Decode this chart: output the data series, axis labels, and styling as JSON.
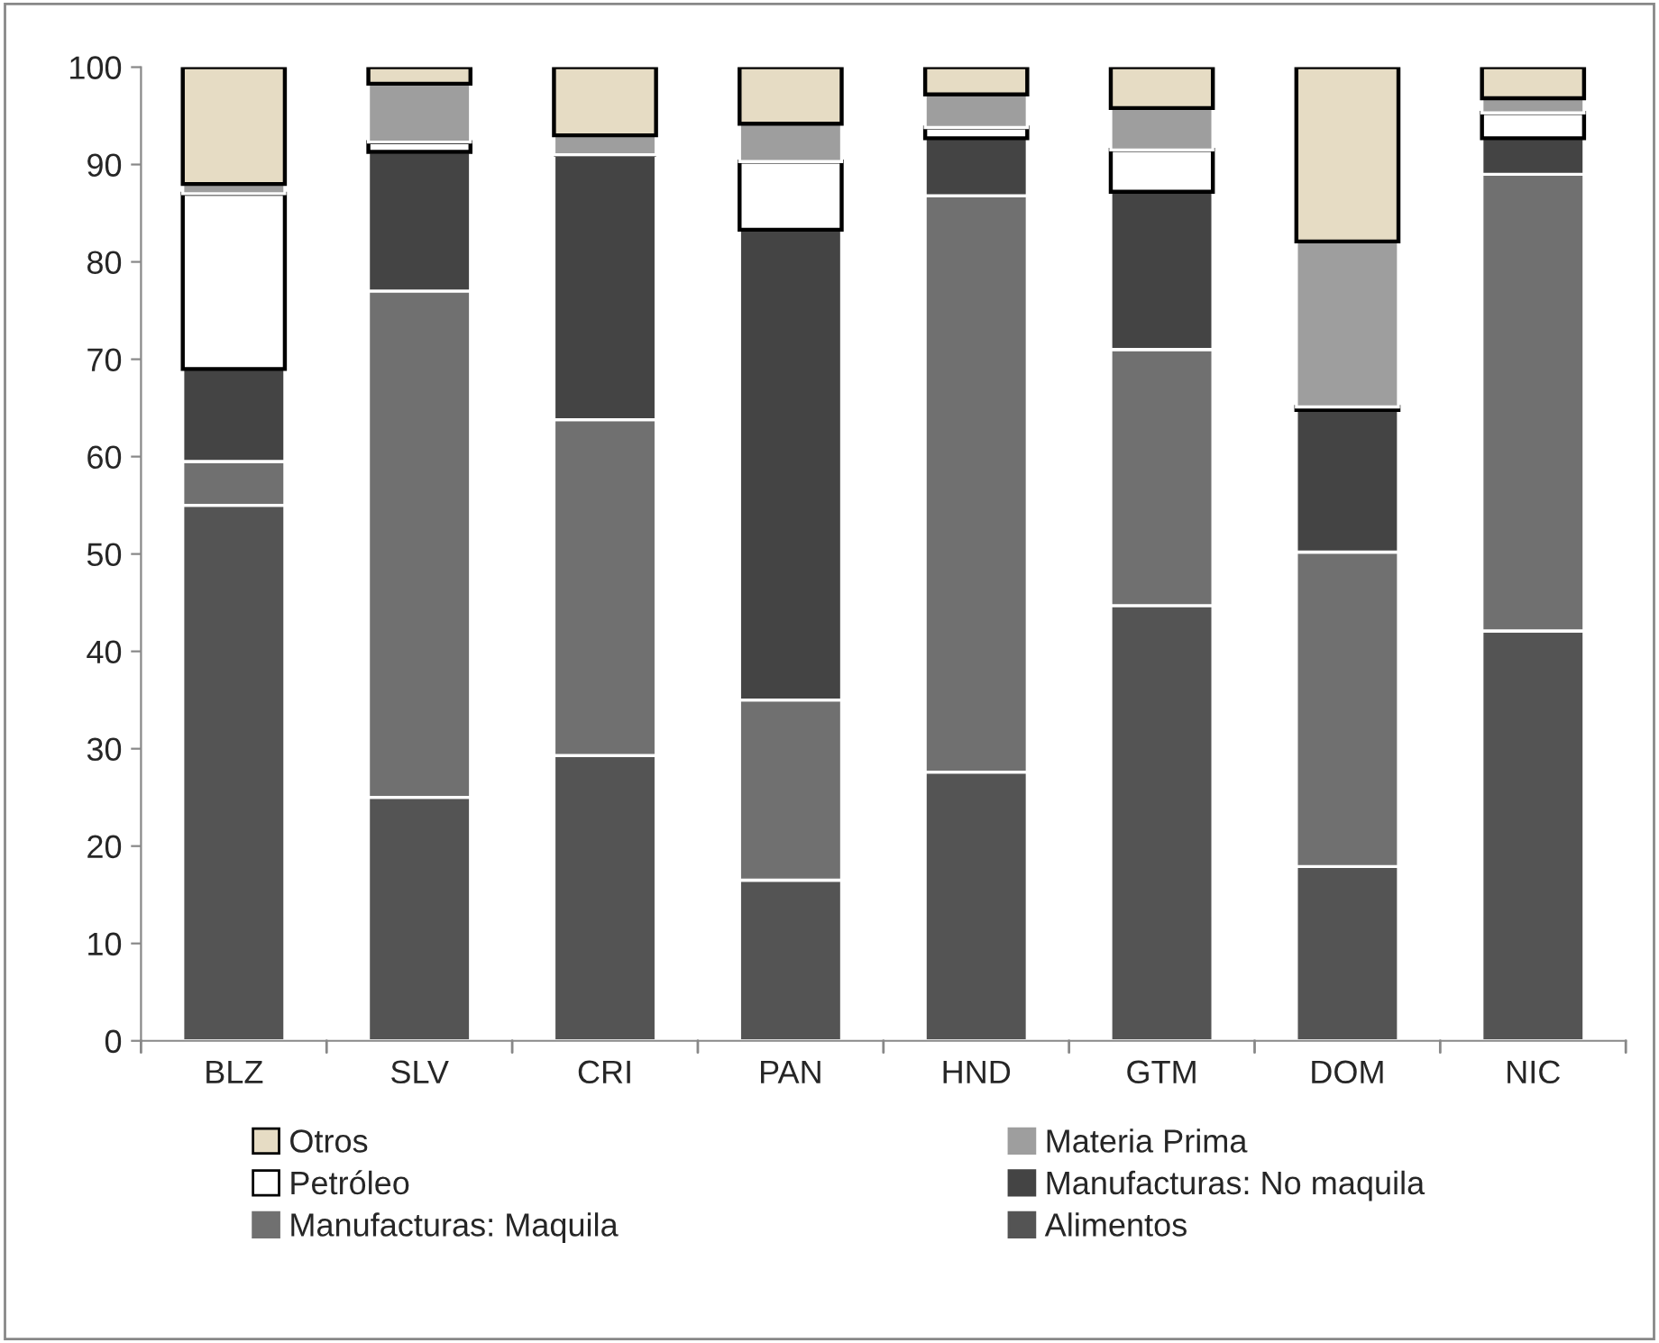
{
  "chart_data": {
    "type": "bar",
    "stacked": true,
    "categories": [
      "BLZ",
      "SLV",
      "CRI",
      "PAN",
      "HND",
      "GTM",
      "DOM",
      "NIC"
    ],
    "series": [
      {
        "name": "Alimentos",
        "color": "#545454",
        "values": [
          55,
          25,
          29.3,
          16.5,
          27.6,
          44.7,
          17.9,
          42.1
        ]
      },
      {
        "name": "Manufacturas: Maquila",
        "color": "#707070",
        "values": [
          4.5,
          52,
          34.5,
          18.5,
          59.2,
          26.3,
          32.3,
          46.9
        ]
      },
      {
        "name": "Manufacturas: No maquila",
        "color": "#444444",
        "values": [
          9.5,
          14.3,
          27.2,
          48.3,
          5.9,
          16.2,
          14.6,
          3.7
        ]
      },
      {
        "name": "Petróleo",
        "color": "#ffffff",
        "values": [
          18,
          1,
          0,
          7,
          1.1,
          4.3,
          0.3,
          2.6
        ]
      },
      {
        "name": "Materia Prima",
        "color": "#9e9e9e",
        "values": [
          1,
          6,
          2,
          3.9,
          3.4,
          4.3,
          17,
          1.5
        ]
      },
      {
        "name": "Otros",
        "color": "#e6dcc4",
        "values": [
          12,
          1.7,
          7,
          5.8,
          2.8,
          4.2,
          17.9,
          3.2
        ]
      }
    ],
    "ylim": [
      0,
      100
    ],
    "yticks": [
      0,
      10,
      20,
      30,
      40,
      50,
      60,
      70,
      80,
      90,
      100
    ],
    "grid": false,
    "legend": "bottom"
  }
}
